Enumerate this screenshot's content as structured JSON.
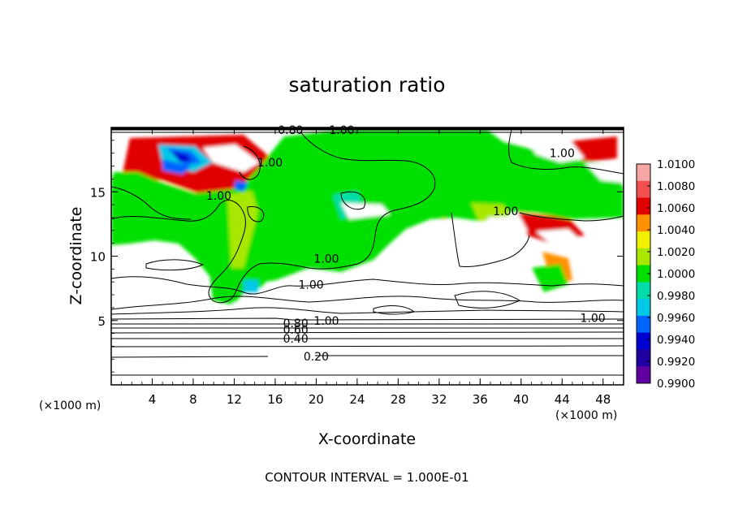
{
  "chart_data": {
    "type": "heatmap",
    "title": "saturation ratio",
    "xlabel": "X-coordinate",
    "ylabel": "Z-coordinate",
    "x_unit_left": "(×1000 m)",
    "x_unit_right": "(×1000 m)",
    "xlim": [
      0,
      50
    ],
    "ylim": [
      0,
      20
    ],
    "x_ticks": [
      4,
      8,
      12,
      16,
      20,
      24,
      28,
      32,
      36,
      40,
      44,
      48
    ],
    "y_ticks": [
      5,
      10,
      15
    ],
    "footnote": "CONTOUR INTERVAL = 1.000E-01",
    "colorbar": {
      "labels": [
        "1.0100",
        "1.0080",
        "1.0060",
        "1.0040",
        "1.0020",
        "1.0000",
        "0.9980",
        "0.9960",
        "0.9940",
        "0.9920",
        "0.9900"
      ],
      "colors": [
        "#f7a6a6",
        "#f25050",
        "#e00000",
        "#ff9000",
        "#f0f000",
        "#a8e800",
        "#00e000",
        "#00ddaa",
        "#00c8e6",
        "#0064ff",
        "#0000d0",
        "#2000a0",
        "#6000a0"
      ]
    },
    "contour_labels": [
      {
        "text": "0.20",
        "x": 20,
        "y": 2.2
      },
      {
        "text": "0.40",
        "x": 18,
        "y": 3.6
      },
      {
        "text": "0.60",
        "x": 18,
        "y": 4.3
      },
      {
        "text": "0.80",
        "x": 18,
        "y": 4.8
      },
      {
        "text": "1.00",
        "x": 21,
        "y": 5.0
      },
      {
        "text": "1.00",
        "x": 47,
        "y": 5.2
      },
      {
        "text": "1.00",
        "x": 19.5,
        "y": 7.8
      },
      {
        "text": "1.00",
        "x": 21,
        "y": 9.8
      },
      {
        "text": "1.00",
        "x": 10.5,
        "y": 14.7
      },
      {
        "text": "1.00",
        "x": 15.5,
        "y": 17.3
      },
      {
        "text": "1.00",
        "x": 38.5,
        "y": 13.5
      },
      {
        "text": "1.00",
        "x": 44,
        "y": 18.0
      },
      {
        "text": "0.80",
        "x": 17.5,
        "y": 19.8
      },
      {
        "text": "1.00",
        "x": 22.5,
        "y": 19.8
      }
    ]
  }
}
